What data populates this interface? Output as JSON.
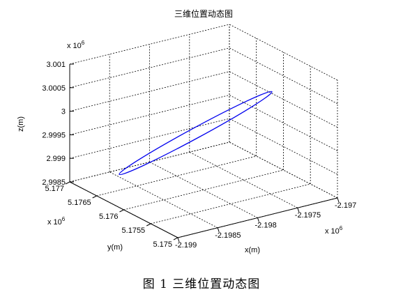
{
  "chart_data": {
    "type": "line3d",
    "title": "三维位置动态图",
    "xlabel": "x(m)",
    "ylabel": "y(m)",
    "zlabel": "z(m)",
    "x_exponent": "6",
    "y_exponent": "6",
    "z_exponent": "6",
    "x_ticks": [
      "-2.199",
      "-2.1985",
      "-2.198",
      "-2.1975",
      "-2.197"
    ],
    "y_ticks": [
      "5.175",
      "5.1755",
      "5.176",
      "5.1765",
      "5.177"
    ],
    "z_ticks": [
      "2.9985",
      "2.999",
      "2.9995",
      "3",
      "3.0005",
      "3.001"
    ],
    "xlim": [
      -2.199,
      -2.197
    ],
    "ylim": [
      5.175,
      5.177
    ],
    "zlim": [
      2.9985,
      3.001
    ],
    "grid": true,
    "series": [
      {
        "color": "#0000ee",
        "shape": "closed-loop",
        "center": {
          "x": -2.1981,
          "y": 5.176,
          "z": 2.99975
        },
        "endpoint_a": {
          "x": -2.19865,
          "y": 5.1766,
          "z": 2.99875
        },
        "endpoint_b": {
          "x": -2.19755,
          "y": 5.1754,
          "z": 3.00075
        },
        "width_fraction": 0.06
      }
    ]
  },
  "caption": "图 1  三维位置动态图"
}
